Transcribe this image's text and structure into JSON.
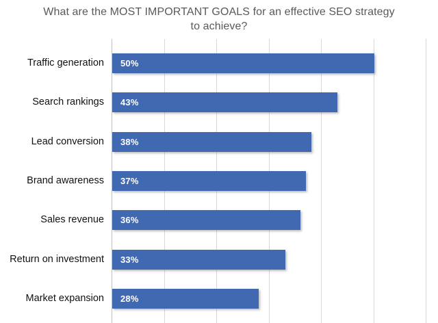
{
  "chart_data": {
    "type": "bar",
    "orientation": "horizontal",
    "title": "What are the MOST IMPORTANT GOALS for an effective SEO strategy to achieve?",
    "title_lines": [
      "What are the MOST IMPORTANT GOALS for an effective SEO strategy",
      "to achieve?"
    ],
    "categories": [
      "Traffic generation",
      "Search rankings",
      "Lead conversion",
      "Brand awareness",
      "Sales revenue",
      "Return on investment",
      "Market expansion"
    ],
    "values": [
      50,
      43,
      38,
      37,
      36,
      33,
      28
    ],
    "value_labels": [
      "50%",
      "43%",
      "38%",
      "37%",
      "36%",
      "33%",
      "28%"
    ],
    "xlabel": "",
    "ylabel": "",
    "xlim": [
      0,
      60
    ],
    "grid_step": 10,
    "grid": true,
    "legend": false,
    "colors": {
      "bar": "#4169B1",
      "value_label": "#FFFFFF",
      "gridline": "#D8D8D8",
      "axis_line": "#C0C0C0",
      "title": "#595959",
      "category_label": "#111111",
      "background": "#FFFFFF"
    }
  }
}
